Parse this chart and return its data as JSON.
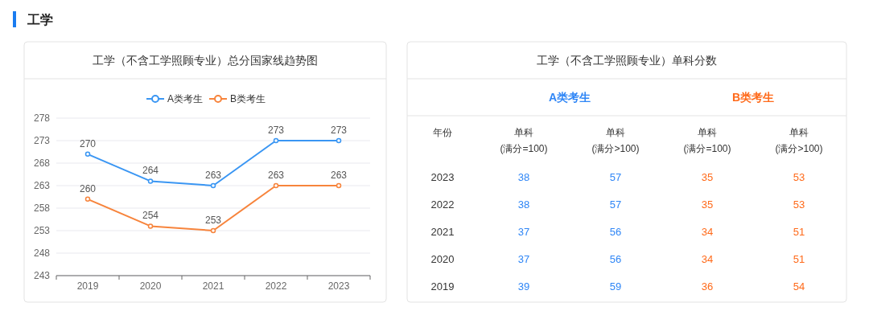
{
  "chart_data": [
    {
      "type": "line",
      "title": "工学（不含工学照顾专业）总分国家线趋势图",
      "annotations": [
        "工学"
      ],
      "categories": [
        "2019",
        "2020",
        "2021",
        "2022",
        "2023"
      ],
      "series": [
        {
          "name": "A类考生",
          "color": "#3a96f3",
          "values": [
            270,
            264,
            263,
            273,
            273
          ]
        },
        {
          "name": "B类考生",
          "color": "#f7843c",
          "values": [
            260,
            254,
            253,
            263,
            263
          ]
        }
      ],
      "ylim": [
        243,
        278
      ],
      "yticks": [
        243,
        248,
        253,
        258,
        263,
        268,
        273,
        278
      ],
      "grid": "y",
      "legend": "top",
      "marker": "circle",
      "data_labels": true
    },
    {
      "type": "heatmap",
      "title": "工学（不含工学照顾专业）单科分数",
      "annotations": [
        "A类考生",
        "B类考生"
      ],
      "ylabel": "年份",
      "categories": [
        "单科 (满分=100)",
        "单科 (满分>100)",
        "单科 (满分=100)",
        "单科 (满分>100)"
      ],
      "y_categories": [
        "2023",
        "2022",
        "2021",
        "2020",
        "2019"
      ],
      "cells": [
        [
          38,
          57,
          35,
          53
        ],
        [
          38,
          57,
          35,
          53
        ],
        [
          37,
          56,
          34,
          51
        ],
        [
          37,
          56,
          34,
          51
        ],
        [
          39,
          59,
          36,
          54
        ]
      ],
      "data_labels": true
    }
  ]
}
